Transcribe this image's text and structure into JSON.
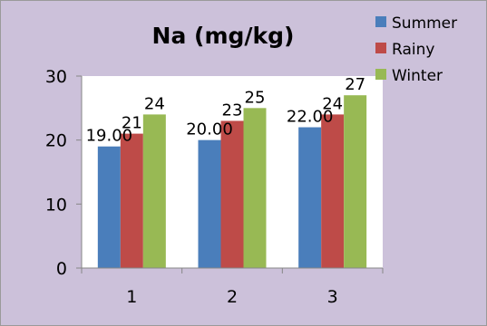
{
  "chart_data": {
    "type": "bar",
    "title": "Na (mg/kg)",
    "categories": [
      "1",
      "2",
      "3"
    ],
    "series": [
      {
        "name": "Summer",
        "values": [
          19,
          20,
          22
        ],
        "labels": [
          "19.00",
          "20.00",
          "22.00"
        ],
        "color": "#4a7ebb"
      },
      {
        "name": "Rainy",
        "values": [
          21,
          23,
          24
        ],
        "labels": [
          "21",
          "23",
          "24"
        ],
        "color": "#be4b48"
      },
      {
        "name": "Winter",
        "values": [
          24,
          25,
          27
        ],
        "labels": [
          "24",
          "25",
          "27"
        ],
        "color": "#98b954"
      }
    ],
    "ylim": [
      0,
      30
    ],
    "yticks": [
      "0",
      "10",
      "20",
      "30"
    ],
    "grid": false,
    "legend": "top-right",
    "colors": {
      "background": "#ccc1da",
      "plot_area": "#ffffff",
      "axis": "#868686"
    }
  }
}
